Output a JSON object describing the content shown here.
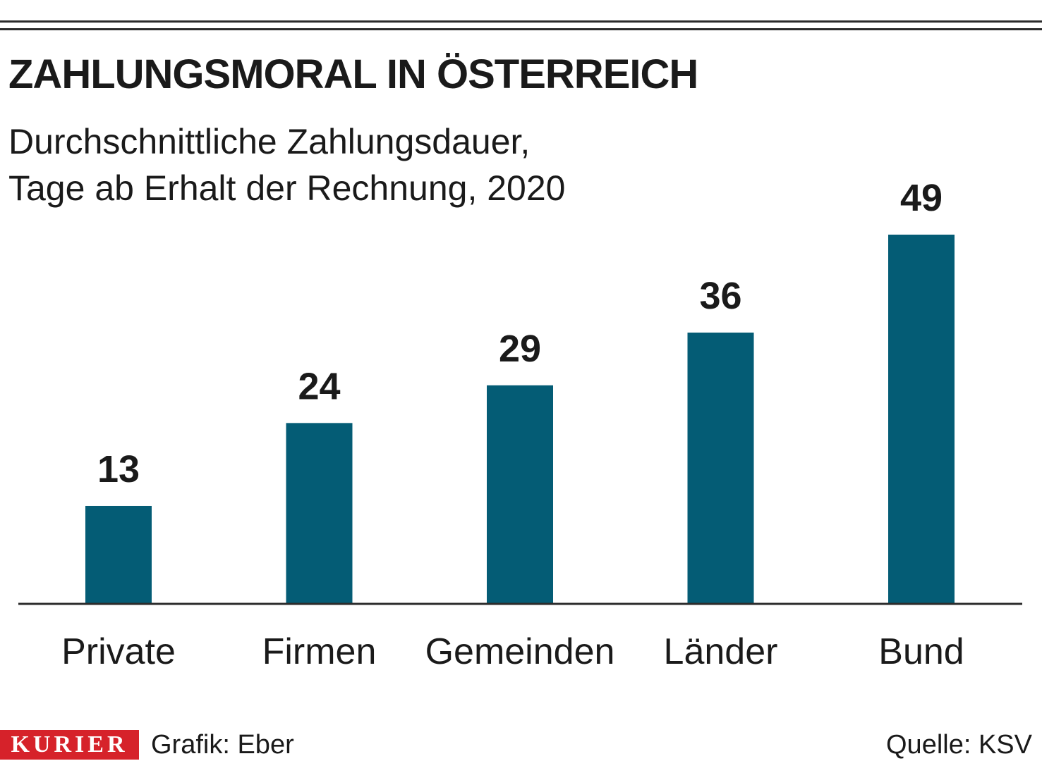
{
  "header": {
    "title": "ZAHLUNGSMORAL IN ÖSTERREICH",
    "subtitle_line1": "Durchschnittliche Zahlungsdauer,",
    "subtitle_line2": "Tage ab Erhalt der Rechnung, 2020"
  },
  "chart_data": {
    "type": "bar",
    "title": "ZAHLUNGSMORAL IN ÖSTERREICH",
    "subtitle": "Durchschnittliche Zahlungsdauer, Tage ab Erhalt der Rechnung, 2020",
    "categories": [
      "Private",
      "Firmen",
      "Gemeinden",
      "Länder",
      "Bund"
    ],
    "values": [
      13,
      24,
      29,
      36,
      49
    ],
    "xlabel": "",
    "ylabel": "",
    "ylim": [
      0,
      49
    ],
    "grid": false,
    "bar_color": "#045c75"
  },
  "footer": {
    "brand": "KURIER",
    "brand_color": "#d6222a",
    "credit": "Grafik: Eber",
    "source": "Quelle: KSV"
  }
}
